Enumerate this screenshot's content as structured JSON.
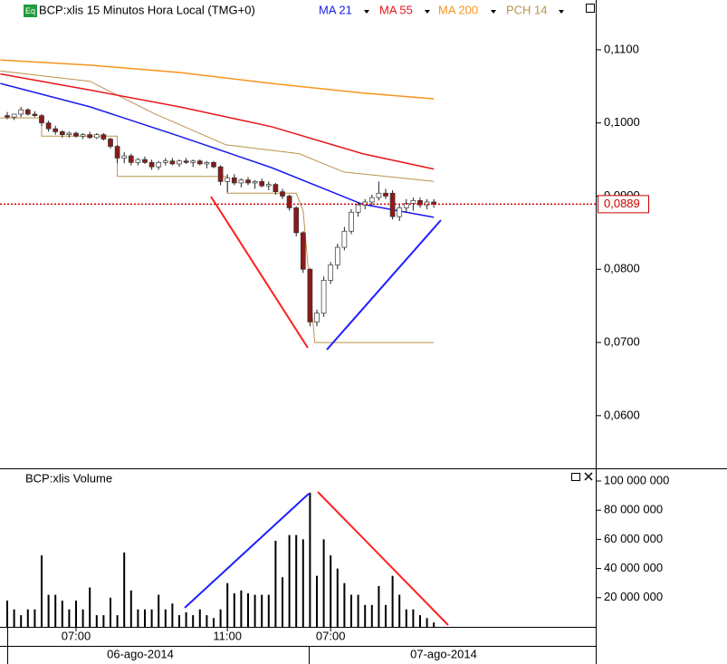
{
  "chart_data": {
    "type": "candlestick",
    "title": "BCP:xlis 15 Minutos Hora Local (TMG+0)",
    "volume_title": "BCP:xlis Volume",
    "icon": "Eq",
    "categories": [
      null,
      null,
      null,
      null,
      null,
      null,
      null,
      null,
      null,
      null,
      "07:00",
      null,
      null,
      null,
      null,
      null,
      null,
      null,
      null,
      null,
      null,
      null,
      null,
      null,
      null,
      null,
      null,
      null,
      null,
      null,
      null,
      null,
      "11:00",
      null,
      null,
      null,
      null,
      null,
      null,
      null,
      null,
      null,
      null,
      null,
      null,
      null,
      null,
      "07:00",
      null,
      null,
      null,
      null,
      null,
      null,
      null,
      null,
      null,
      null,
      null,
      null,
      null,
      null,
      null
    ],
    "days": [
      "06-ago-2014",
      "07-ago-2014"
    ],
    "up_color": "#ffffff",
    "down_color": "#8b1a1a",
    "wick_color": "#222222",
    "candles": [
      [
        0.101,
        0.1015,
        0.1005,
        0.1008
      ],
      [
        0.1008,
        0.1012,
        0.1004,
        0.1012
      ],
      [
        0.1012,
        0.1022,
        0.1008,
        0.1018
      ],
      [
        0.1018,
        0.102,
        0.101,
        0.1012
      ],
      [
        0.1012,
        0.1016,
        0.1008,
        0.101
      ],
      [
        0.101,
        0.1012,
        0.0996,
        0.1
      ],
      [
        0.1,
        0.1003,
        0.0988,
        0.0992
      ],
      [
        0.0992,
        0.0996,
        0.0984,
        0.0988
      ],
      [
        0.0988,
        0.099,
        0.098,
        0.0984
      ],
      [
        0.0984,
        0.0988,
        0.098,
        0.0986
      ],
      [
        0.0986,
        0.0988,
        0.098,
        0.0982
      ],
      [
        0.0982,
        0.0986,
        0.0978,
        0.0984
      ],
      [
        0.0984,
        0.0988,
        0.0978,
        0.098
      ],
      [
        0.098,
        0.0986,
        0.0978,
        0.0984
      ],
      [
        0.0984,
        0.0986,
        0.0976,
        0.0978
      ],
      [
        0.0978,
        0.098,
        0.0965,
        0.0968
      ],
      [
        0.0968,
        0.097,
        0.0945,
        0.0952
      ],
      [
        0.0952,
        0.096,
        0.0945,
        0.0955
      ],
      [
        0.0955,
        0.0958,
        0.0942,
        0.0946
      ],
      [
        0.0946,
        0.0952,
        0.0942,
        0.095
      ],
      [
        0.095,
        0.0954,
        0.0944,
        0.0946
      ],
      [
        0.0946,
        0.095,
        0.0936,
        0.094
      ],
      [
        0.094,
        0.0948,
        0.0936,
        0.0946
      ],
      [
        0.0946,
        0.0952,
        0.0942,
        0.0948
      ],
      [
        0.0948,
        0.0952,
        0.0942,
        0.0944
      ],
      [
        0.0944,
        0.095,
        0.094,
        0.0948
      ],
      [
        0.0948,
        0.0952,
        0.0944,
        0.0946
      ],
      [
        0.0946,
        0.095,
        0.094,
        0.0948
      ],
      [
        0.0948,
        0.095,
        0.0942,
        0.0944
      ],
      [
        0.0944,
        0.0948,
        0.0938,
        0.0946
      ],
      [
        0.0946,
        0.0948,
        0.0938,
        0.094
      ],
      [
        0.094,
        0.0942,
        0.0915,
        0.092
      ],
      [
        0.092,
        0.093,
        0.0905,
        0.0925
      ],
      [
        0.0925,
        0.093,
        0.0915,
        0.0918
      ],
      [
        0.0918,
        0.0924,
        0.0912,
        0.0922
      ],
      [
        0.0922,
        0.0926,
        0.0915,
        0.0918
      ],
      [
        0.0918,
        0.0922,
        0.091,
        0.092
      ],
      [
        0.092,
        0.0924,
        0.0912,
        0.0914
      ],
      [
        0.0914,
        0.092,
        0.0908,
        0.0916
      ],
      [
        0.0916,
        0.0918,
        0.0902,
        0.0906
      ],
      [
        0.0906,
        0.091,
        0.0896,
        0.09
      ],
      [
        0.09,
        0.0902,
        0.088,
        0.0884
      ],
      [
        0.0884,
        0.0886,
        0.0845,
        0.085
      ],
      [
        0.085,
        0.0852,
        0.0795,
        0.08
      ],
      [
        0.08,
        0.0802,
        0.0722,
        0.0728
      ],
      [
        0.0728,
        0.0745,
        0.0722,
        0.074
      ],
      [
        0.074,
        0.079,
        0.0735,
        0.0785
      ],
      [
        0.0785,
        0.081,
        0.078,
        0.0806
      ],
      [
        0.0806,
        0.0835,
        0.08,
        0.083
      ],
      [
        0.083,
        0.0858,
        0.0826,
        0.0852
      ],
      [
        0.0852,
        0.0882,
        0.0848,
        0.0878
      ],
      [
        0.0878,
        0.0892,
        0.0872,
        0.0888
      ],
      [
        0.0888,
        0.0896,
        0.0882,
        0.0892
      ],
      [
        0.0892,
        0.0902,
        0.0886,
        0.0898
      ],
      [
        0.0898,
        0.092,
        0.0894,
        0.0904
      ],
      [
        0.0904,
        0.091,
        0.0896,
        0.09
      ],
      [
        0.0904,
        0.0908,
        0.0868,
        0.0872
      ],
      [
        0.0872,
        0.0888,
        0.0866,
        0.0884
      ],
      [
        0.0884,
        0.0896,
        0.0878,
        0.089
      ],
      [
        0.089,
        0.0898,
        0.088,
        0.0894
      ],
      [
        0.0894,
        0.0898,
        0.0884,
        0.0888
      ],
      [
        0.0888,
        0.0896,
        0.0882,
        0.0892
      ],
      [
        0.0892,
        0.0896,
        0.0884,
        0.0889
      ]
    ],
    "volume": [
      18000000,
      12000000,
      8000000,
      12000000,
      12000000,
      49000000,
      22000000,
      22000000,
      18000000,
      12000000,
      18000000,
      12000000,
      27000000,
      8000000,
      8000000,
      20000000,
      8000000,
      51000000,
      25000000,
      12000000,
      12000000,
      12000000,
      22000000,
      12000000,
      16000000,
      8000000,
      10000000,
      8000000,
      12000000,
      8000000,
      6000000,
      12000000,
      30000000,
      23000000,
      25000000,
      23000000,
      22000000,
      22000000,
      22000000,
      59000000,
      34000000,
      63000000,
      63000000,
      60000000,
      92000000,
      35000000,
      60000000,
      49000000,
      40000000,
      30000000,
      22000000,
      22000000,
      15000000,
      15000000,
      28000000,
      15000000,
      35000000,
      22000000,
      12000000,
      12000000,
      8000000,
      6000000,
      3000000
    ],
    "volume_color": "#000000",
    "series": [
      {
        "name": "MA 21",
        "color": "#1a1aee",
        "x": [
          -1,
          12,
          25,
          38.4,
          51.6,
          62
        ],
        "values": [
          0.1054,
          0.1022,
          0.0982,
          0.0939,
          0.0889,
          0.0871
        ]
      },
      {
        "name": "MA 55",
        "color": "#e8161b",
        "x": [
          -1,
          12,
          25,
          38.4,
          51.6,
          62
        ],
        "values": [
          0.1067,
          0.1045,
          0.1022,
          0.0995,
          0.0958,
          0.0937
        ]
      },
      {
        "name": "MA 200",
        "color": "#f7941d",
        "x": [
          -1,
          12,
          25,
          38.4,
          51.6,
          62
        ],
        "values": [
          0.1086,
          0.1079,
          0.1069,
          0.1054,
          0.1041,
          0.1033
        ]
      }
    ],
    "channel": {
      "name": "PCH 14",
      "color": "#b8934a",
      "upper": {
        "x": [
          -1,
          12,
          21.3,
          31.8,
          42.4,
          48.9,
          62
        ],
        "values": [
          0.1071,
          0.1057,
          0.1013,
          0.097,
          0.0958,
          0.0933,
          0.092
        ]
      },
      "lower": {
        "x": [
          -1,
          5,
          5,
          16,
          16,
          32,
          32,
          42,
          43,
          44.7,
          62
        ],
        "values": [
          0.1007,
          0.1007,
          0.0982,
          0.0982,
          0.0927,
          0.0927,
          0.0904,
          0.0904,
          0.088,
          0.07,
          0.07
        ]
      }
    },
    "last": {
      "value": 0.0889,
      "label": "0,0889"
    },
    "last_color": "#cc0000",
    "ylim": [
      0.0528,
      0.1168
    ],
    "yticks": [
      {
        "value": 0.06,
        "label": "0,0600"
      },
      {
        "value": 0.07,
        "label": "0,0700"
      },
      {
        "value": 0.08,
        "label": "0,0800"
      },
      {
        "value": 0.09,
        "label": "0,0900"
      },
      {
        "value": 0.1,
        "label": "0,1000"
      },
      {
        "value": 0.11,
        "label": "0,1100"
      }
    ],
    "volume_ylim": [
      0,
      108700000
    ],
    "volume_yticks": [
      {
        "value": 20000000,
        "label": "20 000 000"
      },
      {
        "value": 40000000,
        "label": "40 000 000"
      },
      {
        "value": 60000000,
        "label": "60 000 000"
      },
      {
        "value": 80000000,
        "label": "80 000 000"
      },
      {
        "value": 100000000,
        "label": "100 000 000"
      }
    ]
  }
}
